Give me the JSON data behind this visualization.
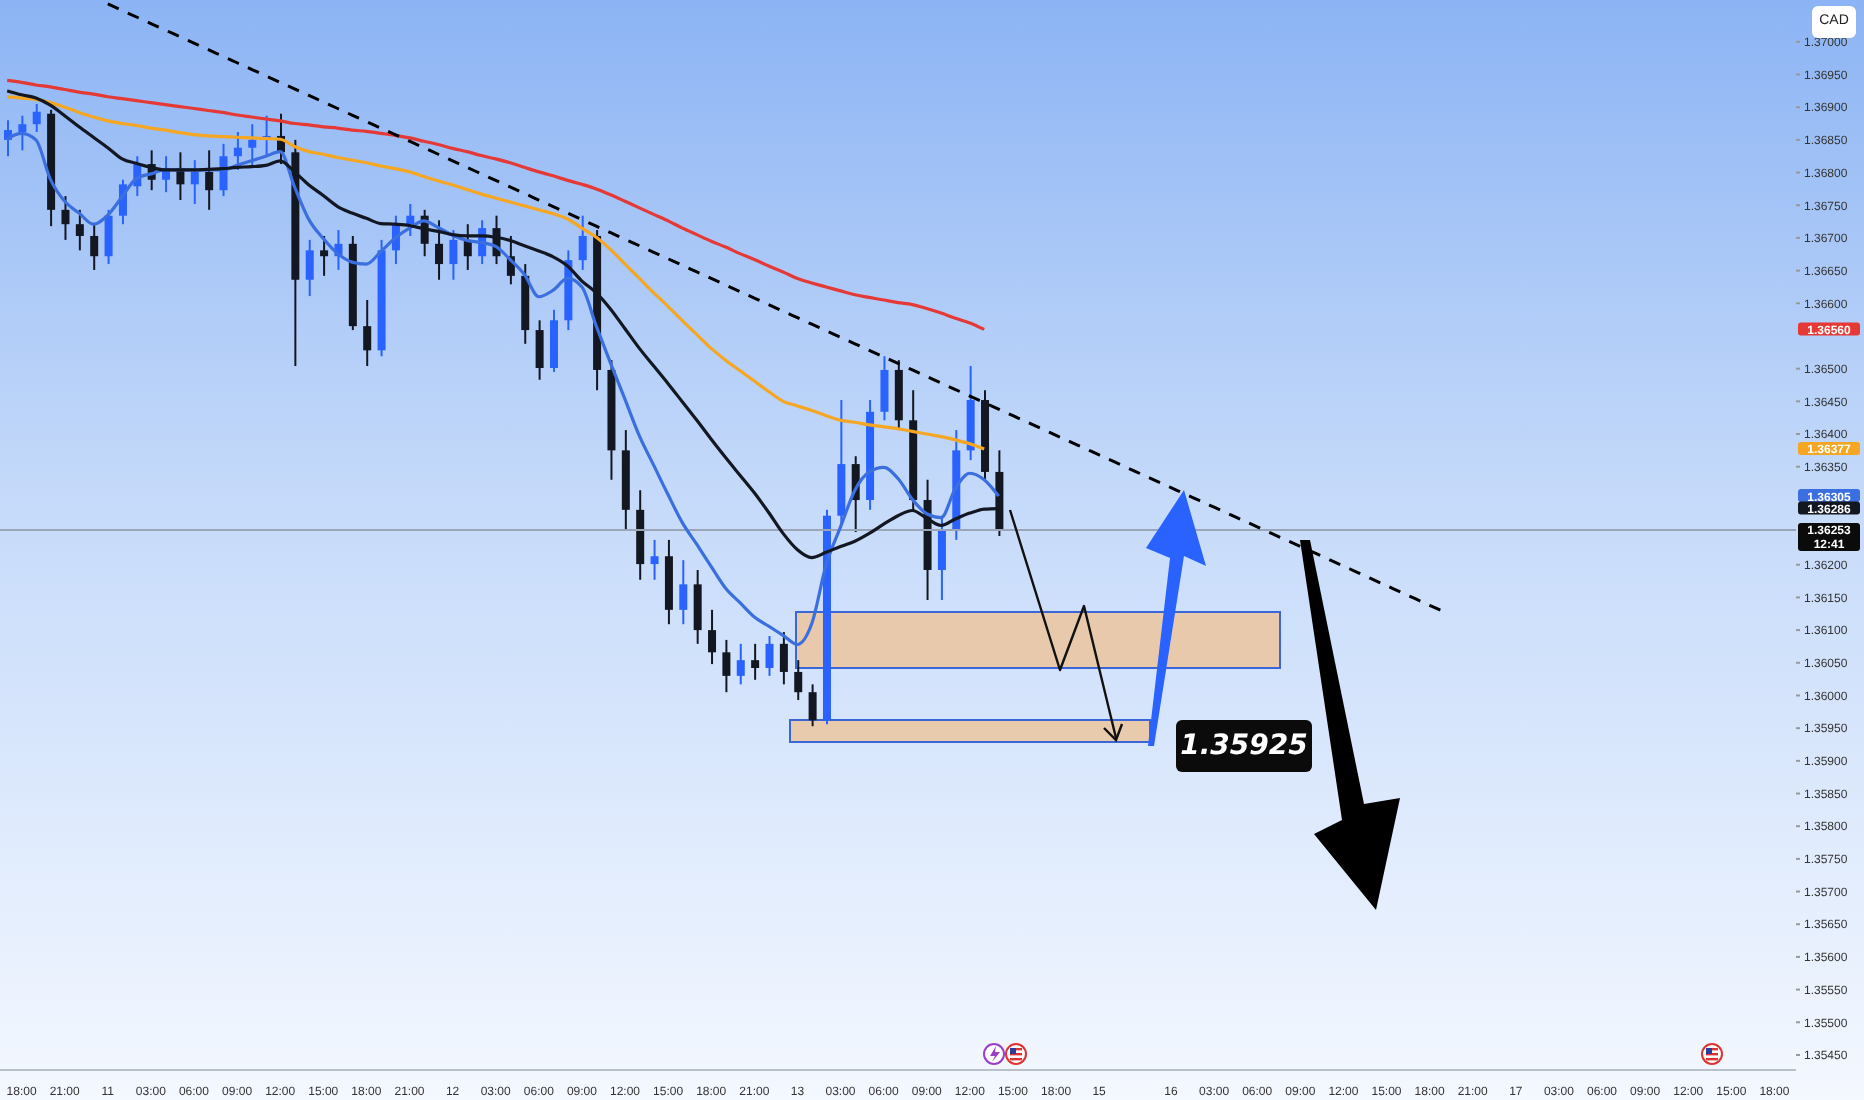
{
  "chart_data": {
    "type": "candlestick",
    "categories": [
      null,
      "18:00",
      null,
      null,
      "21:00",
      null,
      null,
      "11",
      null,
      null,
      "03:00",
      null,
      null,
      "06:00",
      null,
      null,
      "09:00",
      null,
      null,
      "12:00",
      null,
      null,
      "15:00",
      null,
      null,
      "18:00",
      null,
      null,
      "21:00",
      null,
      null,
      "12",
      null,
      null,
      "03:00",
      null,
      null,
      "06:00",
      null,
      null,
      "09:00",
      null,
      null,
      "12:00",
      null,
      null,
      "15:00",
      null,
      null,
      "18:00",
      null,
      null,
      "21:00",
      null,
      null,
      "13",
      null,
      null,
      "03:00",
      null,
      null,
      "06:00",
      null,
      null,
      "09:00",
      null,
      null,
      "12:00",
      null,
      null,
      "15:00",
      null,
      null,
      "18:00",
      null,
      null,
      "15",
      null,
      null,
      null,
      null,
      "16",
      null,
      null,
      "03:00",
      null,
      null,
      "06:00",
      null,
      null,
      "09:00",
      null,
      null,
      "12:00",
      null,
      null,
      "15:00",
      null,
      null,
      "18:00",
      null,
      null,
      "21:00",
      null,
      null,
      "17",
      null,
      null,
      "03:00",
      null,
      null,
      "06:00",
      null,
      null,
      "09:00",
      null,
      null,
      "12:00",
      null,
      null,
      "15:00",
      null,
      null,
      "18:00",
      null
    ],
    "ohlc": [
      [
        1.3685,
        1.3688,
        1.36825,
        1.36865
      ],
      [
        1.36862,
        1.36887,
        1.36834,
        1.36874
      ],
      [
        1.36874,
        1.36905,
        1.36862,
        1.36893
      ],
      [
        1.3689,
        1.36896,
        1.36718,
        1.36743
      ],
      [
        1.36743,
        1.36764,
        1.36697,
        1.36721
      ],
      [
        1.36721,
        1.36743,
        1.36681,
        1.36703
      ],
      [
        1.36703,
        1.36721,
        1.36651,
        1.36672
      ],
      [
        1.36672,
        1.36743,
        1.3666,
        1.36734
      ],
      [
        1.36734,
        1.36789,
        1.36721,
        1.36782
      ],
      [
        1.36779,
        1.36825,
        1.36764,
        1.36813
      ],
      [
        1.36813,
        1.36834,
        1.36773,
        1.36789
      ],
      [
        1.36789,
        1.36825,
        1.3677,
        1.36807
      ],
      [
        1.36807,
        1.36831,
        1.36758,
        1.36782
      ],
      [
        1.36782,
        1.36819,
        1.36752,
        1.36801
      ],
      [
        1.36801,
        1.36834,
        1.36743,
        1.36773
      ],
      [
        1.36773,
        1.36844,
        1.36764,
        1.36825
      ],
      [
        1.36825,
        1.36862,
        1.36804,
        1.36838
      ],
      [
        1.36838,
        1.36874,
        1.36807,
        1.3685
      ],
      [
        1.3685,
        1.36887,
        1.36825,
        1.36856
      ],
      [
        1.36856,
        1.3689,
        1.36813,
        1.36831
      ],
      [
        1.36831,
        1.3685,
        1.36504,
        1.36636
      ],
      [
        1.36636,
        1.36697,
        1.36611,
        1.36681
      ],
      [
        1.36681,
        1.36703,
        1.36642,
        1.36672
      ],
      [
        1.36672,
        1.36712,
        1.36651,
        1.36691
      ],
      [
        1.36691,
        1.36703,
        1.36559,
        1.36565
      ],
      [
        1.36565,
        1.36605,
        1.36504,
        1.36528
      ],
      [
        1.36528,
        1.36697,
        1.36519,
        1.36681
      ],
      [
        1.36681,
        1.36734,
        1.3666,
        1.36721
      ],
      [
        1.36721,
        1.36752,
        1.36703,
        1.36734
      ],
      [
        1.36734,
        1.36743,
        1.36672,
        1.36691
      ],
      [
        1.36691,
        1.36727,
        1.36636,
        1.3666
      ],
      [
        1.3666,
        1.36712,
        1.36636,
        1.36697
      ],
      [
        1.36697,
        1.36721,
        1.36651,
        1.36672
      ],
      [
        1.36672,
        1.36727,
        1.3666,
        1.36715
      ],
      [
        1.36715,
        1.36734,
        1.3666,
        1.36672
      ],
      [
        1.36672,
        1.36703,
        1.36629,
        1.36642
      ],
      [
        1.36642,
        1.3666,
        1.36538,
        1.36559
      ],
      [
        1.36559,
        1.36574,
        1.36483,
        1.36501
      ],
      [
        1.36501,
        1.3659,
        1.36495,
        1.36574
      ],
      [
        1.36574,
        1.36681,
        1.36559,
        1.36666
      ],
      [
        1.36666,
        1.36734,
        1.36651,
        1.36703
      ],
      [
        1.36703,
        1.36712,
        1.36467,
        1.36498
      ],
      [
        1.36498,
        1.36513,
        1.3633,
        1.36375
      ],
      [
        1.36375,
        1.36406,
        1.36253,
        1.36284
      ],
      [
        1.36284,
        1.36314,
        1.36177,
        1.36201
      ],
      [
        1.36201,
        1.36238,
        1.36177,
        1.36213
      ],
      [
        1.36213,
        1.36238,
        1.36109,
        1.36131
      ],
      [
        1.36131,
        1.36207,
        1.36109,
        1.3617
      ],
      [
        1.3617,
        1.36192,
        1.36079,
        1.361
      ],
      [
        1.361,
        1.36131,
        1.36048,
        1.36066
      ],
      [
        1.36066,
        1.36085,
        1.36005,
        1.3603
      ],
      [
        1.3603,
        1.36079,
        1.36017,
        1.36054
      ],
      [
        1.36054,
        1.36079,
        1.36024,
        1.36042
      ],
      [
        1.36042,
        1.36091,
        1.3603,
        1.36079
      ],
      [
        1.36079,
        1.36097,
        1.36017,
        1.36036
      ],
      [
        1.36036,
        1.36054,
        1.35993,
        1.36005
      ],
      [
        1.36005,
        1.36017,
        1.35953,
        1.35962
      ],
      [
        1.35962,
        1.36284,
        1.35956,
        1.36275
      ],
      [
        1.36275,
        1.36452,
        1.36262,
        1.36354
      ],
      [
        1.36354,
        1.36366,
        1.3625,
        1.36299
      ],
      [
        1.36299,
        1.36452,
        1.36284,
        1.36434
      ],
      [
        1.36434,
        1.36519,
        1.36421,
        1.36498
      ],
      [
        1.36498,
        1.36513,
        1.36406,
        1.36421
      ],
      [
        1.36421,
        1.36467,
        1.36284,
        1.36299
      ],
      [
        1.36299,
        1.3633,
        1.36146,
        1.36192
      ],
      [
        1.36192,
        1.36275,
        1.36146,
        1.36253
      ],
      [
        1.36253,
        1.36406,
        1.36238,
        1.36375
      ],
      [
        1.36375,
        1.36504,
        1.3636,
        1.36452
      ],
      [
        1.36452,
        1.36467,
        1.3633,
        1.36342
      ],
      [
        1.36342,
        1.36375,
        1.36244,
        1.36253
      ],
      null,
      null,
      null,
      null,
      null,
      null,
      null,
      null,
      null,
      null,
      null,
      null,
      null,
      null,
      null,
      null,
      null,
      null,
      null,
      null,
      null,
      null,
      null,
      null,
      null,
      null,
      null,
      null,
      null,
      null,
      null,
      null,
      null,
      null,
      null,
      null,
      null,
      null,
      null,
      null,
      null,
      null,
      null,
      null,
      null,
      null,
      null,
      null,
      null,
      null,
      null,
      null,
      null,
      null,
      null
    ],
    "colors": [
      "#2962ff",
      "#2962ff",
      "#2962ff",
      "#131722",
      "#131722",
      "#131722",
      "#131722",
      "#2962ff",
      "#2962ff",
      "#2962ff",
      "#131722",
      "#2962ff",
      "#131722",
      "#2962ff",
      "#131722",
      "#2962ff",
      "#2962ff",
      "#2962ff",
      "#2962ff",
      "#131722",
      "#131722",
      "#2962ff",
      "#131722",
      "#2962ff",
      "#131722",
      "#131722",
      "#2962ff",
      "#2962ff",
      "#2962ff",
      "#131722",
      "#131722",
      "#2962ff",
      "#131722",
      "#2962ff",
      "#131722",
      "#131722",
      "#131722",
      "#131722",
      "#2962ff",
      "#2962ff",
      "#2962ff",
      "#131722",
      "#131722",
      "#131722",
      "#131722",
      "#2962ff",
      "#131722",
      "#2962ff",
      "#131722",
      "#131722",
      "#131722",
      "#2962ff",
      "#131722",
      "#2962ff",
      "#131722",
      "#131722",
      "#131722",
      "#2962ff",
      "#2962ff",
      "#131722",
      "#2962ff",
      "#2962ff",
      "#131722",
      "#131722",
      "#131722",
      "#2962ff",
      "#2962ff",
      "#2962ff",
      "#131722",
      "#131722",
      null,
      null,
      null,
      null,
      null,
      null,
      null,
      null,
      null,
      null,
      null,
      null,
      null,
      null,
      null,
      null,
      null,
      null,
      null,
      null,
      null,
      null,
      null,
      null,
      null,
      null,
      null,
      null,
      null,
      null,
      null,
      null,
      null,
      null,
      null,
      null,
      null,
      null,
      null,
      null,
      null,
      null,
      null,
      null,
      null,
      null,
      null,
      null,
      null,
      null,
      null,
      null,
      null,
      null,
      null
    ],
    "series": [
      {
        "type": "line",
        "color": "#e53935",
        "values": [
          1.36941,
          1.36938,
          1.36934,
          1.36931,
          1.36927,
          1.36923,
          1.3692,
          1.36916,
          1.36913,
          1.3691,
          1.36907,
          1.36904,
          1.36901,
          1.36898,
          1.36895,
          1.36892,
          1.36888,
          1.36885,
          1.36882,
          1.36879,
          1.36875,
          1.36873,
          1.3687,
          1.36868,
          1.36865,
          1.36863,
          1.3686,
          1.36857,
          1.36853,
          1.36848,
          1.36843,
          1.36837,
          1.36832,
          1.36826,
          1.36821,
          1.36815,
          1.36808,
          1.36801,
          1.36795,
          1.36788,
          1.36782,
          1.36775,
          1.36766,
          1.36756,
          1.36746,
          1.36736,
          1.36726,
          1.36715,
          1.36705,
          1.36695,
          1.36686,
          1.36676,
          1.36667,
          1.36657,
          1.36648,
          1.36638,
          1.36631,
          1.36625,
          1.36619,
          1.36613,
          1.36609,
          1.36605,
          1.36601,
          1.36598,
          1.36592,
          1.36585,
          1.36577,
          1.3657,
          1.3656,
          null,
          null,
          null,
          null,
          null,
          null,
          null,
          null,
          null,
          null,
          null,
          null,
          null,
          null,
          null,
          null,
          null,
          null,
          null,
          null,
          null,
          null,
          null,
          null,
          null,
          null,
          null,
          null,
          null,
          null,
          null,
          null,
          null,
          null,
          null,
          null,
          null,
          null,
          null,
          null,
          null,
          null,
          null,
          null,
          null,
          null,
          null,
          null,
          null,
          null,
          null,
          null,
          null,
          null,
          null,
          null
        ]
      },
      {
        "type": "line",
        "color": "#f5a623",
        "values": [
          1.36916,
          1.36914,
          1.36912,
          1.36907,
          1.369,
          1.36892,
          1.36885,
          1.36879,
          1.36875,
          1.36872,
          1.36868,
          1.36865,
          1.36861,
          1.36858,
          1.36856,
          1.36855,
          1.36854,
          1.36853,
          1.36852,
          1.36851,
          1.3684,
          1.36832,
          1.36828,
          1.36823,
          1.36819,
          1.36815,
          1.3681,
          1.36806,
          1.36801,
          1.36794,
          1.36787,
          1.36781,
          1.36774,
          1.36767,
          1.36761,
          1.36755,
          1.36749,
          1.36743,
          1.36737,
          1.36729,
          1.36715,
          1.36701,
          1.36682,
          1.3666,
          1.36638,
          1.36616,
          1.36595,
          1.36573,
          1.36552,
          1.36531,
          1.36513,
          1.36497,
          1.36481,
          1.36465,
          1.3645,
          1.36443,
          1.36436,
          1.36428,
          1.36421,
          1.36418,
          1.36414,
          1.36411,
          1.36408,
          1.36404,
          1.364,
          1.36396,
          1.36391,
          1.36385,
          1.36377,
          null,
          null,
          null,
          null,
          null,
          null,
          null,
          null,
          null,
          null,
          null,
          null,
          null,
          null,
          null,
          null,
          null,
          null,
          null,
          null,
          null,
          null,
          null,
          null,
          null,
          null,
          null,
          null,
          null,
          null,
          null,
          null,
          null,
          null,
          null,
          null,
          null,
          null,
          null,
          null,
          null,
          null,
          null,
          null,
          null,
          null,
          null,
          null,
          null,
          null,
          null,
          null,
          null,
          null,
          null,
          null
        ]
      },
      {
        "type": "line",
        "color": "#3b6fe0",
        "values": [
          1.36852,
          1.3686,
          1.3685,
          1.3679,
          1.36756,
          1.36738,
          1.36721,
          1.36735,
          1.36763,
          1.36791,
          1.36798,
          1.36804,
          1.36804,
          1.36804,
          1.36804,
          1.36804,
          1.36811,
          1.36818,
          1.36825,
          1.36832,
          1.36778,
          1.36728,
          1.36699,
          1.36676,
          1.36663,
          1.3666,
          1.36679,
          1.367,
          1.36715,
          1.36726,
          1.36716,
          1.36704,
          1.36696,
          1.36693,
          1.36687,
          1.36667,
          1.36644,
          1.3661,
          1.3662,
          1.36638,
          1.36625,
          1.36565,
          1.36508,
          1.36453,
          1.36397,
          1.36352,
          1.36307,
          1.36264,
          1.36231,
          1.36197,
          1.36164,
          1.36142,
          1.3612,
          1.36106,
          1.36092,
          1.36078,
          1.3611,
          1.362,
          1.36258,
          1.36314,
          1.36342,
          1.36349,
          1.36332,
          1.363,
          1.36278,
          1.36272,
          1.36317,
          1.3634,
          1.3633,
          1.36305,
          null,
          null,
          null,
          null,
          null,
          null,
          null,
          null,
          null,
          null,
          null,
          null,
          null,
          null,
          null,
          null,
          null,
          null,
          null,
          null,
          null,
          null,
          null,
          null,
          null,
          null,
          null,
          null,
          null,
          null,
          null,
          null,
          null,
          null,
          null,
          null,
          null,
          null,
          null,
          null,
          null,
          null,
          null,
          null,
          null,
          null,
          null,
          null,
          null,
          null,
          null,
          null,
          null,
          null,
          null
        ]
      },
      {
        "type": "line",
        "color": "#131722",
        "values": [
          1.36925,
          1.36919,
          1.36914,
          1.36903,
          1.36887,
          1.3687,
          1.36854,
          1.36838,
          1.36821,
          1.36814,
          1.36808,
          1.36804,
          1.36804,
          1.36804,
          1.36805,
          1.36806,
          1.36808,
          1.36809,
          1.36811,
          1.36818,
          1.36801,
          1.36781,
          1.36765,
          1.36748,
          1.36738,
          1.3673,
          1.36722,
          1.36721,
          1.36719,
          1.36714,
          1.3671,
          1.36705,
          1.36703,
          1.36703,
          1.36701,
          1.36696,
          1.36688,
          1.3668,
          1.36671,
          1.36657,
          1.36634,
          1.36616,
          1.36591,
          1.36561,
          1.36531,
          1.36504,
          1.36477,
          1.36449,
          1.36421,
          1.36392,
          1.36364,
          1.36337,
          1.3631,
          1.3628,
          1.36248,
          1.36223,
          1.36211,
          1.36219,
          1.36228,
          1.36236,
          1.36248,
          1.36262,
          1.36275,
          1.36283,
          1.36271,
          1.3626,
          1.3627,
          1.36279,
          1.36285,
          1.36286,
          null,
          null,
          null,
          null,
          null,
          null,
          null,
          null,
          null,
          null,
          null,
          null,
          null,
          null,
          null,
          null,
          null,
          null,
          null,
          null,
          null,
          null,
          null,
          null,
          null,
          null,
          null,
          null,
          null,
          null,
          null,
          null,
          null,
          null,
          null,
          null,
          null,
          null,
          null,
          null,
          null,
          null,
          null,
          null,
          null,
          null,
          null,
          null,
          null,
          null,
          null,
          null,
          null,
          null,
          null
        ]
      },
      {
        "type": "line",
        "color": "#000000",
        "line_style": "dashed",
        "values": [
          null,
          null,
          null,
          null,
          null,
          null,
          null,
          1.37058,
          1.37048,
          1.37038,
          1.37028,
          1.37018,
          1.37008,
          1.36998,
          1.36988,
          1.36978,
          1.36968,
          1.36958,
          1.36948,
          1.36938,
          1.36928,
          1.36918,
          1.36908,
          1.36898,
          1.36888,
          1.36878,
          1.36868,
          1.36858,
          1.36848,
          1.36838,
          1.36828,
          1.36818,
          1.36808,
          1.36798,
          1.36788,
          1.36778,
          1.36768,
          1.36758,
          1.36748,
          1.36738,
          1.36728,
          1.36718,
          1.36708,
          1.36698,
          1.36688,
          1.36678,
          1.36668,
          1.36658,
          1.36648,
          1.36638,
          1.36628,
          1.36618,
          1.36608,
          1.36598,
          1.36588,
          1.36578,
          1.36568,
          1.36558,
          1.36548,
          1.36538,
          1.36528,
          1.36518,
          1.36508,
          1.36498,
          1.36488,
          1.36478,
          1.36468,
          1.36458,
          1.36448,
          1.36438,
          1.36428,
          1.36418,
          1.36408,
          1.36398,
          1.36388,
          1.36378,
          1.36368,
          1.36358,
          1.36348,
          1.36338,
          1.36328,
          1.36318,
          1.36308,
          1.36298,
          1.36288,
          1.36278,
          1.36268,
          1.36258,
          1.36248,
          1.36238,
          1.36228,
          1.36218,
          1.36208,
          1.36198,
          1.36188,
          1.36178,
          1.36168,
          1.36158,
          1.36148,
          1.36138,
          1.36128,
          null,
          null,
          null,
          null,
          null,
          null,
          null,
          null,
          null,
          null,
          null,
          null,
          null,
          null,
          null,
          null,
          null,
          null,
          null,
          null,
          null,
          null,
          null,
          null
        ]
      }
    ],
    "ylim": [
      1.35427,
      1.37064
    ],
    "yticks": [
      {
        "value": 1.37,
        "label": "1.37000"
      },
      {
        "value": 1.3695,
        "label": "1.36950"
      },
      {
        "value": 1.369,
        "label": "1.36900"
      },
      {
        "value": 1.3685,
        "label": "1.36850"
      },
      {
        "value": 1.368,
        "label": "1.36800"
      },
      {
        "value": 1.3675,
        "label": "1.36750"
      },
      {
        "value": 1.367,
        "label": "1.36700"
      },
      {
        "value": 1.3665,
        "label": "1.36650"
      },
      {
        "value": 1.366,
        "label": "1.36600"
      },
      {
        "value": 1.365,
        "label": "1.36500"
      },
      {
        "value": 1.3645,
        "label": "1.36450"
      },
      {
        "value": 1.364,
        "label": "1.36400"
      },
      {
        "value": 1.3635,
        "label": "1.36350"
      },
      {
        "value": 1.362,
        "label": "1.36200"
      },
      {
        "value": 1.3615,
        "label": "1.36150"
      },
      {
        "value": 1.361,
        "label": "1.36100"
      },
      {
        "value": 1.3605,
        "label": "1.36050"
      },
      {
        "value": 1.36,
        "label": "1.36000"
      },
      {
        "value": 1.3595,
        "label": "1.35950"
      },
      {
        "value": 1.359,
        "label": "1.35900"
      },
      {
        "value": 1.3585,
        "label": "1.35850"
      },
      {
        "value": 1.358,
        "label": "1.35800"
      },
      {
        "value": 1.3575,
        "label": "1.35750"
      },
      {
        "value": 1.357,
        "label": "1.35700"
      },
      {
        "value": 1.3565,
        "label": "1.35650"
      },
      {
        "value": 1.356,
        "label": "1.35600"
      },
      {
        "value": 1.3555,
        "label": "1.35550"
      },
      {
        "value": 1.355,
        "label": "1.35500"
      },
      {
        "value": 1.3545,
        "label": "1.35450"
      }
    ],
    "ref_lines": [
      {
        "axis": "y",
        "value": 1.36253,
        "label": "1.36253\n12:41",
        "color": "#9aa5b8"
      }
    ],
    "annotations": [
      "1.36560",
      "1.36377",
      "1.36305",
      "1.36286",
      "1.35925",
      "CAD"
    ]
  }
}
